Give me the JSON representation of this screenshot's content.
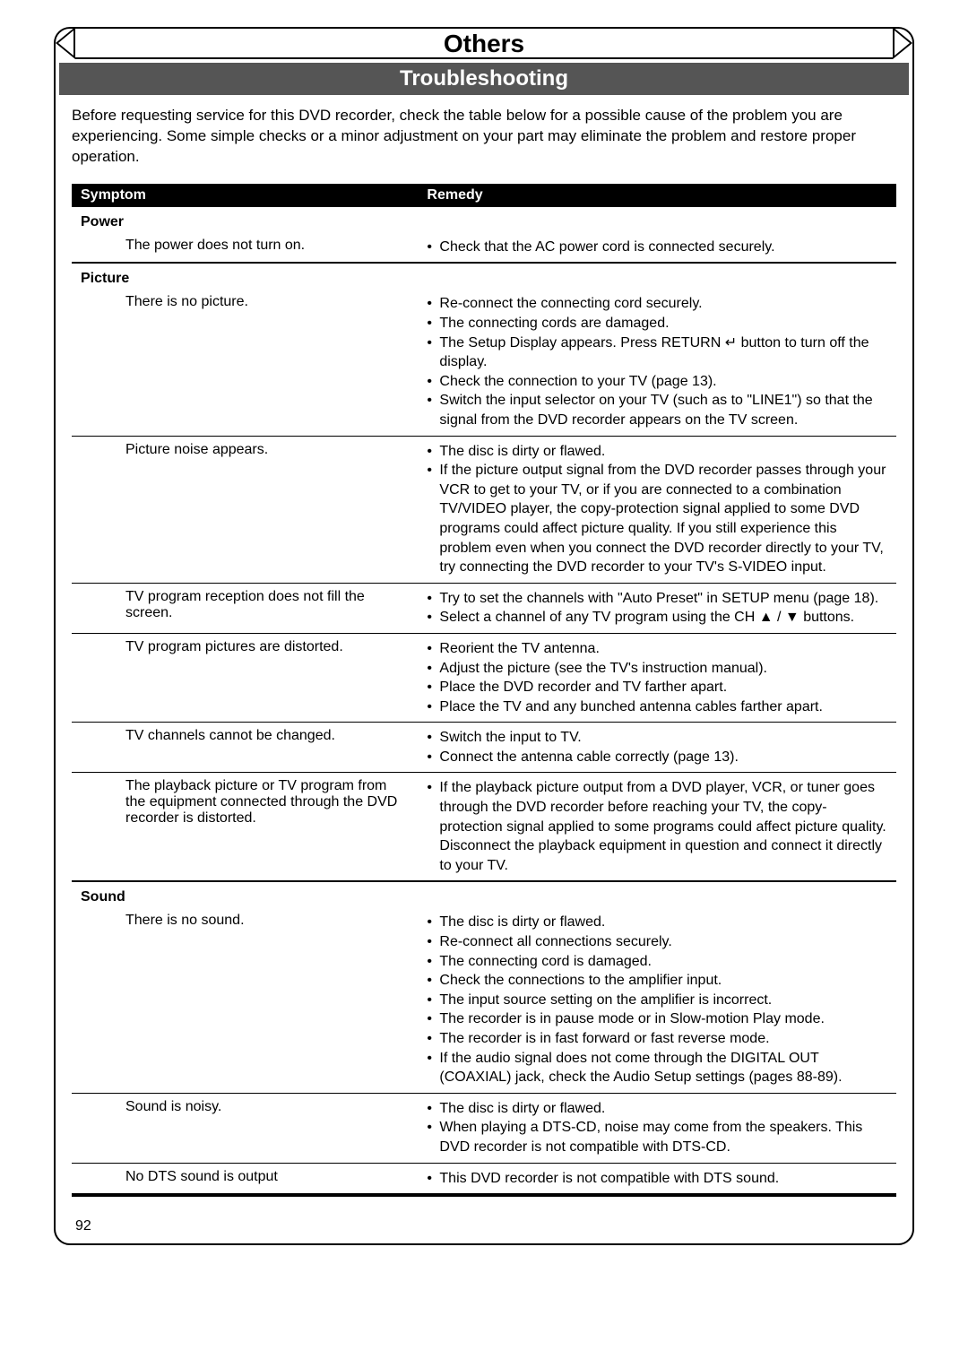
{
  "banner_title": "Others",
  "section_title": "Troubleshooting",
  "intro_text": "Before requesting service for this DVD recorder, check the table below for a possible cause of the problem you are experiencing. Some simple checks or a minor adjustment on your part may eliminate the problem and restore proper operation.",
  "col1": "Symptom",
  "col2": "Remedy",
  "page_number": "92",
  "categories": [
    {
      "name": "Power",
      "rows": [
        {
          "symptom": "The power does not turn on.",
          "remedies": [
            "Check that the AC power cord is connected securely."
          ]
        }
      ]
    },
    {
      "name": "Picture",
      "rows": [
        {
          "symptom": "There is no picture.",
          "remedies": [
            "Re-connect the connecting cord securely.",
            "The connecting cords are damaged.",
            "The Setup Display appears. Press RETURN ↵ button to turn off the display.",
            "Check the connection to your TV (page 13).",
            "Switch the input selector on your TV (such as to \"LINE1\") so that the signal from the DVD recorder appears on the TV screen."
          ]
        },
        {
          "symptom": "Picture noise appears.",
          "remedies": [
            "The disc is dirty or flawed.",
            "If the picture output signal from the DVD recorder passes through your VCR to get to your TV, or if you are connected to a combination TV/VIDEO player, the copy-protection signal applied to some DVD programs could affect picture quality. If you still experience this problem even when you connect the DVD recorder directly to your TV, try connecting the DVD recorder to your TV's S-VIDEO input."
          ]
        },
        {
          "symptom": "TV program reception does not fill the screen.",
          "remedies": [
            "Try to set the channels with \"Auto Preset\" in SETUP menu (page 18).",
            "Select a channel of any TV program using the CH ▲ / ▼ buttons."
          ]
        },
        {
          "symptom": "TV program pictures are distorted.",
          "remedies": [
            "Reorient the TV antenna.",
            "Adjust the picture (see the TV's instruction manual).",
            "Place the  DVD recorder and TV farther apart.",
            "Place the TV and any bunched antenna cables farther apart."
          ]
        },
        {
          "symptom": "TV channels cannot be changed.",
          "remedies": [
            "Switch the input to TV.",
            "Connect the antenna cable correctly (page 13)."
          ]
        },
        {
          "symptom": "The playback picture or TV program from the equipment connected through the DVD recorder is distorted.",
          "remedies": [
            "If the playback picture output from a DVD player, VCR, or tuner goes through the DVD recorder before reaching your TV, the copy-protection signal applied to some programs could affect picture quality. Disconnect the playback equipment in question and connect it directly to your TV."
          ]
        }
      ]
    },
    {
      "name": "Sound",
      "rows": [
        {
          "symptom": "There is no sound.",
          "remedies": [
            "The disc is dirty or flawed.",
            "Re-connect all connections securely.",
            "The connecting cord is damaged.",
            "Check the connections to the amplifier input.",
            "The input source setting on the amplifier is incorrect.",
            "The recorder is in pause mode or in Slow-motion Play mode.",
            "The recorder is in fast forward or fast reverse mode.",
            "If the audio signal does not come through the DIGITAL OUT (COAXIAL) jack, check the Audio Setup settings (pages 88-89)."
          ]
        },
        {
          "symptom": "Sound is noisy.",
          "remedies": [
            "The disc is dirty or flawed.",
            "When playing a DTS-CD, noise may come from the speakers. This DVD recorder is not compatible with DTS-CD."
          ]
        },
        {
          "symptom": "No DTS sound is output",
          "remedies": [
            "This DVD recorder is not compatible with DTS sound."
          ]
        }
      ]
    }
  ]
}
